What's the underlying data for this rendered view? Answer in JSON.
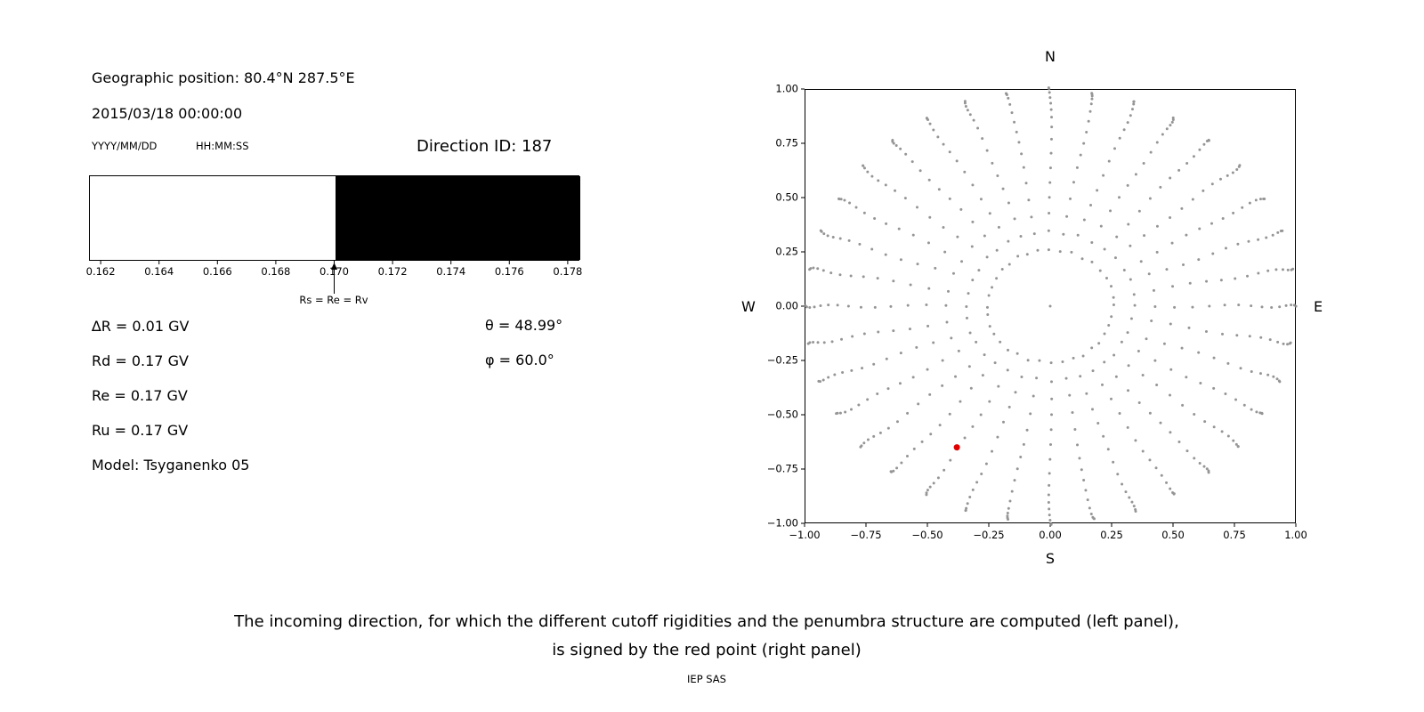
{
  "left_panel": {
    "geo_position": "Geographic position: 80.4°N 287.5°E",
    "datetime": "2015/03/18 00:00:00",
    "date_format_label": "YYYY/MM/DD",
    "time_format_label": "HH:MM:SS",
    "direction_id_label": "Direction ID: 187",
    "params": [
      "∆R = 0.01 GV",
      "Rd = 0.17 GV",
      "Re = 0.17 GV",
      "Ru = 0.17 GV",
      "Model: Tsyganenko 05"
    ],
    "theta_label": "θ = 48.99°",
    "phi_label": "φ = 60.0°"
  },
  "caption": {
    "line1": "The incoming direction, for which the different cutoff rigidities and the penumbra structure are computed (left panel),",
    "line2": "is signed by the red point (right panel)",
    "credit": "IEP SAS"
  },
  "chart_data": [
    {
      "type": "bar",
      "name": "penumbra-structure",
      "title": "",
      "xlabel": "",
      "ylabel": "",
      "xlim": [
        0.1616,
        0.1784
      ],
      "tick_values": [
        0.162,
        0.164,
        0.166,
        0.168,
        0.17,
        0.172,
        0.174,
        0.176,
        0.178
      ],
      "tick_labels": [
        "0.162",
        "0.164",
        "0.166",
        "0.168",
        "0.170",
        "0.172",
        "0.174",
        "0.176",
        "0.178"
      ],
      "allowed_band": {
        "from": 0.1616,
        "to": 0.17,
        "color": "#ffffff"
      },
      "forbidden_band": {
        "from": 0.17,
        "to": 0.1784,
        "color": "#000000"
      },
      "annotation": {
        "x": 0.17,
        "label": "Rs = Re = Rv"
      }
    },
    {
      "type": "scatter",
      "name": "incoming-direction-sky-map",
      "title": "",
      "xlim": [
        -1.0,
        1.0
      ],
      "ylim": [
        -1.0,
        1.0
      ],
      "tick_values": [
        -1.0,
        -0.75,
        -0.5,
        -0.25,
        0.0,
        0.25,
        0.5,
        0.75,
        1.0
      ],
      "tick_labels": [
        "−1.00",
        "−0.75",
        "−0.50",
        "−0.25",
        "0.00",
        "0.25",
        "0.50",
        "0.75",
        "1.00"
      ],
      "compass": {
        "north": "N",
        "east": "E",
        "south": "S",
        "west": "W"
      },
      "grid": {
        "azimuth_step_deg": 10,
        "zenith_angles_deg": [
          15,
          20,
          25,
          30,
          35,
          40,
          45,
          50,
          55,
          60,
          65,
          70,
          75,
          80,
          85,
          90
        ],
        "radius_rule": "sin(zenith_deg)"
      },
      "dot_color": "#8a8a8a",
      "center_dot": {
        "x": 0.0,
        "y": 0.0
      },
      "red_point": {
        "x": -0.38,
        "y": -0.65,
        "color": "#e00000"
      }
    }
  ]
}
